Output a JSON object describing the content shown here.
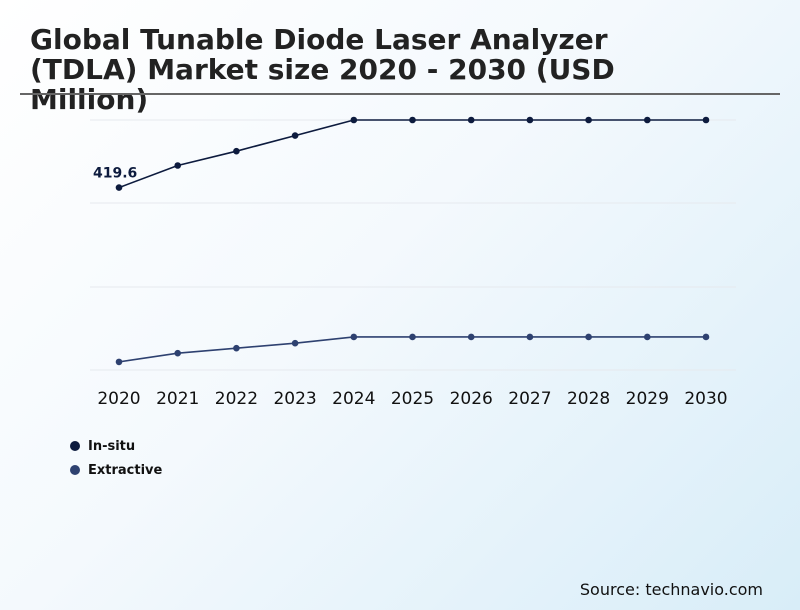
{
  "title": "Global Tunable Diode Laser Analyzer (TDLA) Market size 2020 - 2030 (USD Million)",
  "source": "Source: technavio.com",
  "chart_data": {
    "type": "line",
    "categories": [
      "2020",
      "2021",
      "2022",
      "2023",
      "2024",
      "2025",
      "2026",
      "2027",
      "2028",
      "2029",
      "2030"
    ],
    "series": [
      {
        "name": "In-situ",
        "color": "#0d1b3e",
        "values": [
          419.6,
          455,
          478,
          503,
          528,
          528,
          528,
          528,
          528,
          528,
          528
        ]
      },
      {
        "name": "Extractive",
        "color": "#2e4170",
        "values": [
          140,
          154,
          162,
          170,
          180,
          180,
          180,
          180,
          180,
          180,
          180
        ]
      }
    ],
    "data_labels": [
      {
        "series": 0,
        "index": 0,
        "text": "419.6"
      }
    ],
    "ylim": [
      127,
      528
    ],
    "grid": true,
    "legend": "bottom-left"
  }
}
